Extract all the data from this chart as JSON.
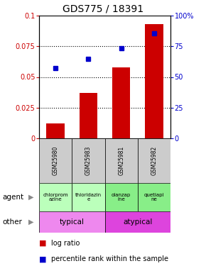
{
  "title": "GDS775 / 18391",
  "samples": [
    "GSM25980",
    "GSM25983",
    "GSM25981",
    "GSM25982"
  ],
  "log_ratio": [
    0.012,
    0.037,
    0.058,
    0.093
  ],
  "percentile_rank": [
    0.575,
    0.645,
    0.735,
    0.855
  ],
  "ylim_left": [
    0,
    0.1
  ],
  "ylim_right": [
    0,
    1.0
  ],
  "yticks_left": [
    0,
    0.025,
    0.05,
    0.075,
    0.1
  ],
  "ytick_labels_left": [
    "0",
    "0.025",
    "0.05",
    "0.075",
    "0.1"
  ],
  "yticks_right": [
    0,
    0.25,
    0.5,
    0.75,
    1.0
  ],
  "ytick_labels_right": [
    "0",
    "25",
    "50",
    "75",
    "100%"
  ],
  "bar_color": "#cc0000",
  "dot_color": "#0000cc",
  "agent_labels": [
    "chlorprom\nazine",
    "thioridazin\ne",
    "olanzap\nine",
    "quetiapi\nne"
  ],
  "agent_colors_typical": "#bbffbb",
  "agent_colors_atypical": "#88ee88",
  "other_label_typical": "typical",
  "other_label_atypical": "atypical",
  "other_color_typical": "#ee88ee",
  "other_color_atypical": "#dd44dd",
  "sample_bg_color": "#cccccc",
  "title_fontsize": 10,
  "tick_fontsize": 7,
  "bar_label_fontsize": 5.5,
  "other_fontsize": 8,
  "legend_fontsize": 7
}
